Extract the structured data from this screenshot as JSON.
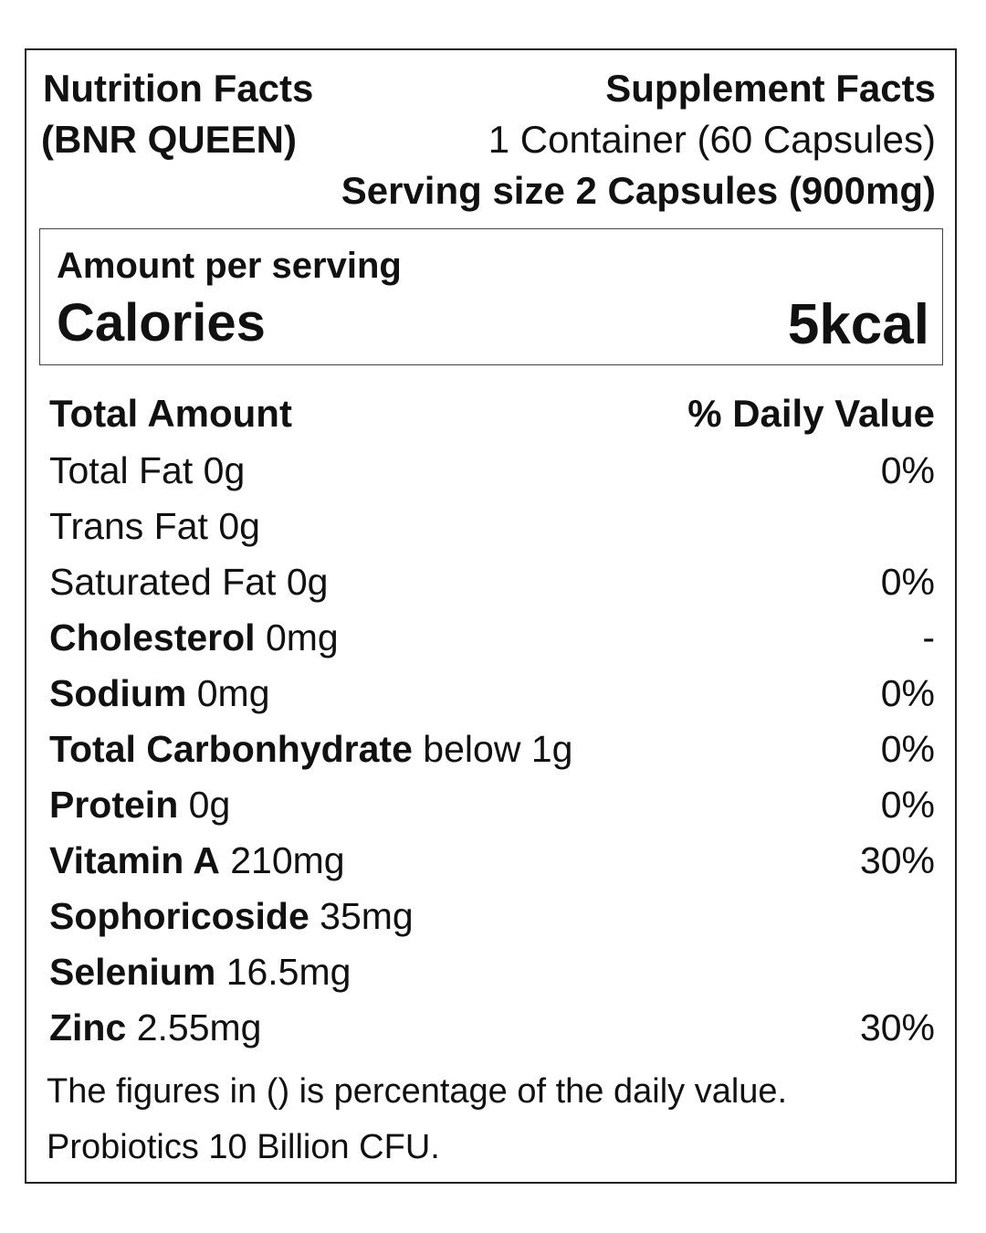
{
  "header": {
    "title_line1": "Nutrition Facts",
    "title_line2": "(BNR QUEEN)",
    "supplement_title": "Supplement Facts",
    "container": "1 Container (60 Capsules)",
    "serving_size": "Serving size 2 Capsules (900mg)"
  },
  "calories": {
    "amount_label": "Amount per serving",
    "label": "Calories",
    "value": "5kcal"
  },
  "table": {
    "col_left": "Total Amount",
    "col_right": "% Daily Value",
    "rows": [
      {
        "name": "Total Fat",
        "amount": "0g",
        "bold": false,
        "dv": "0%"
      },
      {
        "name": "Trans Fat",
        "amount": "0g",
        "bold": false,
        "dv": ""
      },
      {
        "name": "Saturated Fat",
        "amount": "0g",
        "bold": false,
        "dv": "0%"
      },
      {
        "name": "Cholesterol",
        "amount": "0mg",
        "bold": true,
        "dv": "-"
      },
      {
        "name": "Sodium",
        "amount": "0mg",
        "bold": true,
        "dv": "0%"
      },
      {
        "name": "Total Carbonhydrate",
        "amount": "below 1g",
        "bold": true,
        "dv": "0%"
      },
      {
        "name": "Protein",
        "amount": "0g",
        "bold": true,
        "dv": "0%"
      },
      {
        "name": "Vitamin A",
        "amount": "210mg",
        "bold": true,
        "dv": "30%"
      },
      {
        "name": "Sophoricoside",
        "amount": "35mg",
        "bold": true,
        "dv": ""
      },
      {
        "name": "Selenium",
        "amount": "16.5mg",
        "bold": true,
        "dv": ""
      },
      {
        "name": "Zinc",
        "amount": "2.55mg",
        "bold": true,
        "dv": "30%"
      }
    ]
  },
  "footer": {
    "note1": "The figures in () is percentage of the daily value.",
    "note2": "Probiotics 10 Billion CFU."
  }
}
